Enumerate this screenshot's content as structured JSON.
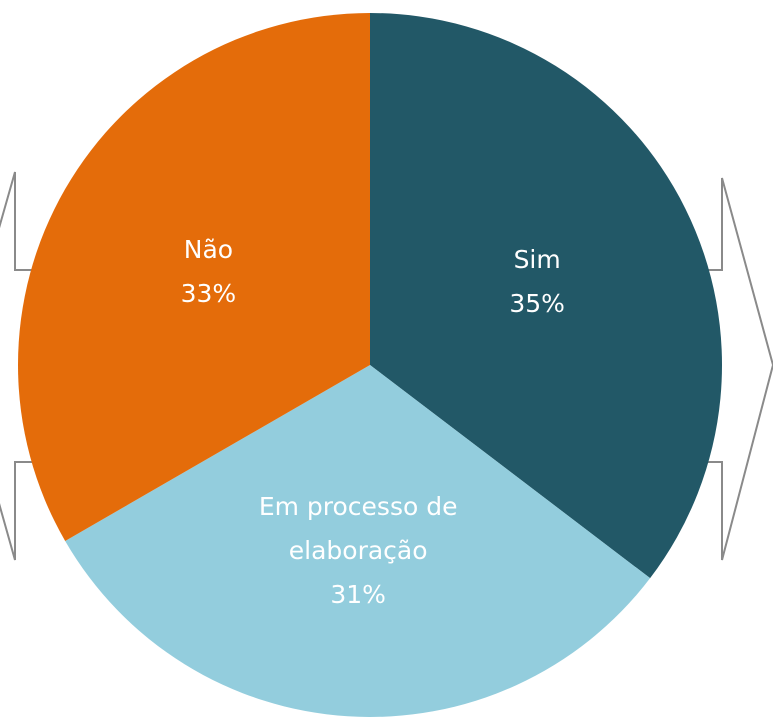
{
  "chart_data": {
    "type": "pie",
    "categories": [
      "Sim",
      "Em processo de elaboração",
      "Não"
    ],
    "values": [
      35,
      31,
      33
    ],
    "value_labels": [
      "35%",
      "31%",
      "33%"
    ],
    "colors": [
      "#225867",
      "#93cddd",
      "#e46c0a"
    ]
  }
}
